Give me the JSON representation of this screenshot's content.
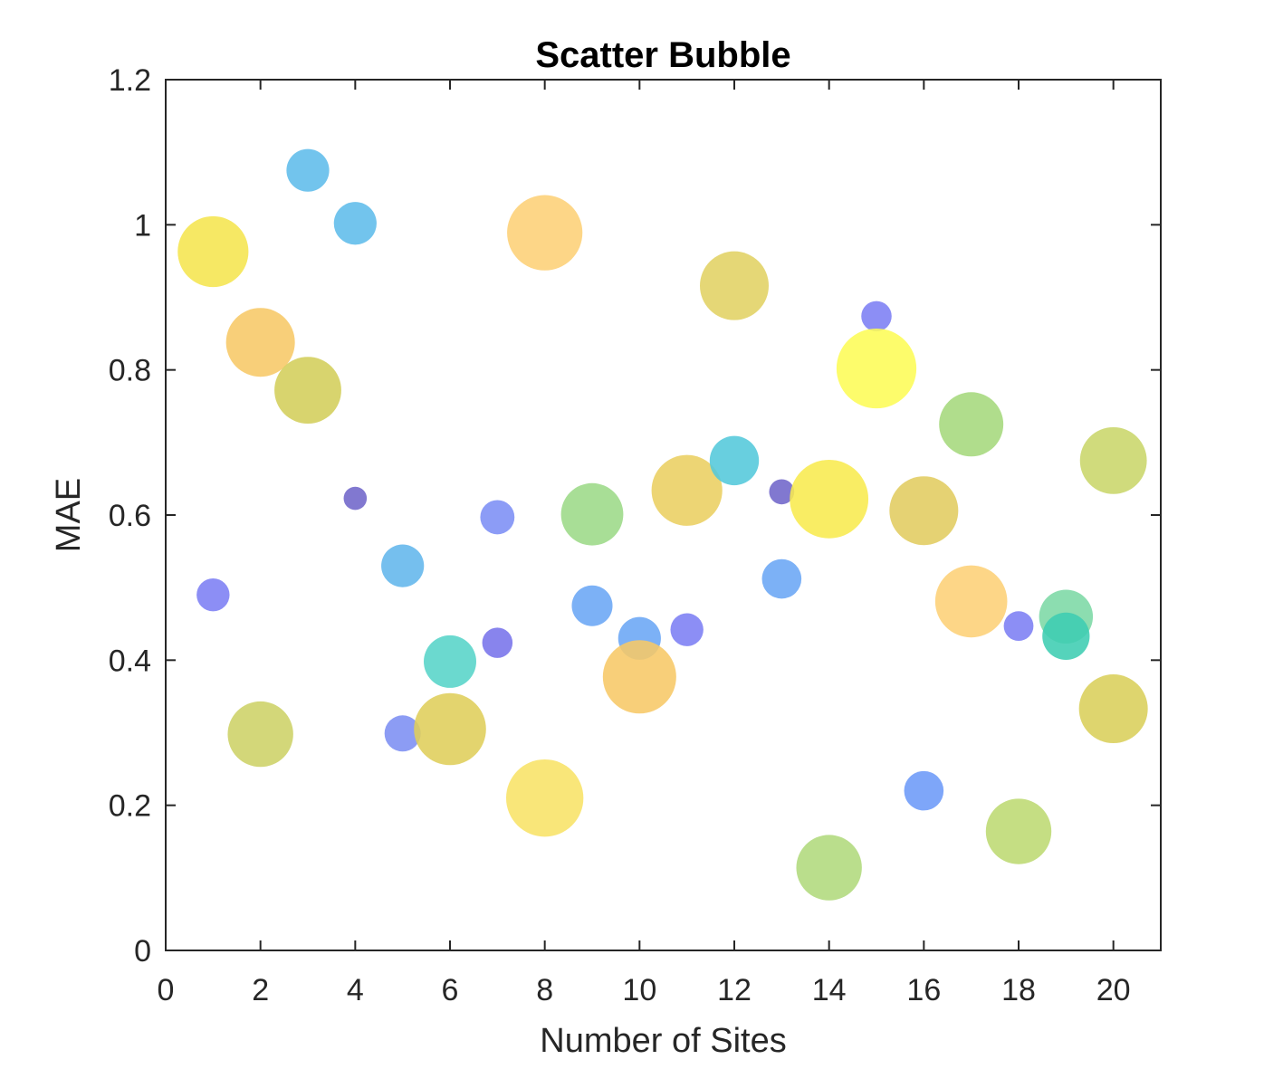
{
  "chart_data": {
    "type": "scatter",
    "title": "Scatter Bubble",
    "xlabel": "Number of Sites",
    "ylabel": "MAE",
    "xlim": [
      0,
      21
    ],
    "ylim": [
      0,
      1.2
    ],
    "xticks": [
      0,
      2,
      4,
      6,
      8,
      10,
      12,
      14,
      16,
      18,
      20
    ],
    "yticks": [
      0,
      0.2,
      0.4,
      0.6,
      0.8,
      1,
      1.2
    ],
    "xtick_labels": [
      "0",
      "2",
      "4",
      "6",
      "8",
      "10",
      "12",
      "14",
      "16",
      "18",
      "20"
    ],
    "ytick_labels": [
      "0",
      "0.2",
      "0.4",
      "0.6",
      "0.8",
      "1",
      "1.2"
    ],
    "grid": false,
    "box": true,
    "points": [
      {
        "x": 1,
        "y": 0.963,
        "size": 0.78,
        "color": "#F5E54F"
      },
      {
        "x": 1,
        "y": 0.49,
        "size": 0.2,
        "color": "#7C7EF4"
      },
      {
        "x": 2,
        "y": 0.838,
        "size": 0.75,
        "color": "#F7C867"
      },
      {
        "x": 2,
        "y": 0.298,
        "size": 0.7,
        "color": "#CDD266"
      },
      {
        "x": 3,
        "y": 1.075,
        "size": 0.35,
        "color": "#5FBCEB"
      },
      {
        "x": 3,
        "y": 0.772,
        "size": 0.72,
        "color": "#D3CE5A"
      },
      {
        "x": 4,
        "y": 1.002,
        "size": 0.35,
        "color": "#5FBCEB"
      },
      {
        "x": 4,
        "y": 0.623,
        "size": 0.05,
        "color": "#7065CA"
      },
      {
        "x": 5,
        "y": 0.53,
        "size": 0.35,
        "color": "#62B6EC"
      },
      {
        "x": 5,
        "y": 0.299,
        "size": 0.25,
        "color": "#7C8EF3"
      },
      {
        "x": 6,
        "y": 0.398,
        "size": 0.5,
        "color": "#57D4C8"
      },
      {
        "x": 6,
        "y": 0.305,
        "size": 0.8,
        "color": "#DFCE5A"
      },
      {
        "x": 7,
        "y": 0.597,
        "size": 0.22,
        "color": "#7C8EF5"
      },
      {
        "x": 7,
        "y": 0.424,
        "size": 0.16,
        "color": "#7773EB"
      },
      {
        "x": 8,
        "y": 0.989,
        "size": 0.85,
        "color": "#FDD076"
      },
      {
        "x": 8,
        "y": 0.21,
        "size": 0.88,
        "color": "#F8E266"
      },
      {
        "x": 9,
        "y": 0.601,
        "size": 0.65,
        "color": "#9CDA88"
      },
      {
        "x": 9,
        "y": 0.475,
        "size": 0.32,
        "color": "#6AA6F5"
      },
      {
        "x": 10,
        "y": 0.43,
        "size": 0.35,
        "color": "#6AA6F5"
      },
      {
        "x": 10,
        "y": 0.377,
        "size": 0.82,
        "color": "#F7C867"
      },
      {
        "x": 11,
        "y": 0.634,
        "size": 0.78,
        "color": "#EACF61"
      },
      {
        "x": 11,
        "y": 0.442,
        "size": 0.2,
        "color": "#7C7EF4"
      },
      {
        "x": 12,
        "y": 0.916,
        "size": 0.75,
        "color": "#E1D263"
      },
      {
        "x": 12,
        "y": 0.675,
        "size": 0.45,
        "color": "#53C8DB"
      },
      {
        "x": 13,
        "y": 0.632,
        "size": 0.08,
        "color": "#7065CA"
      },
      {
        "x": 13,
        "y": 0.512,
        "size": 0.3,
        "color": "#6AA6F5"
      },
      {
        "x": 14,
        "y": 0.622,
        "size": 0.9,
        "color": "#F8EB4F"
      },
      {
        "x": 14,
        "y": 0.114,
        "size": 0.7,
        "color": "#B0D97C"
      },
      {
        "x": 15,
        "y": 0.874,
        "size": 0.16,
        "color": "#7C7EF4"
      },
      {
        "x": 15,
        "y": 0.802,
        "size": 0.92,
        "color": "#FDFC57"
      },
      {
        "x": 16,
        "y": 0.606,
        "size": 0.75,
        "color": "#E1CC60"
      },
      {
        "x": 16,
        "y": 0.22,
        "size": 0.3,
        "color": "#6C9AF8"
      },
      {
        "x": 17,
        "y": 0.725,
        "size": 0.68,
        "color": "#A5D87C"
      },
      {
        "x": 17,
        "y": 0.481,
        "size": 0.8,
        "color": "#FDD076"
      },
      {
        "x": 18,
        "y": 0.447,
        "size": 0.15,
        "color": "#7C7EF4"
      },
      {
        "x": 18,
        "y": 0.164,
        "size": 0.7,
        "color": "#BDDA72"
      },
      {
        "x": 19,
        "y": 0.46,
        "size": 0.52,
        "color": "#7CD8A5"
      },
      {
        "x": 19,
        "y": 0.433,
        "size": 0.42,
        "color": "#3DCDB2"
      },
      {
        "x": 20,
        "y": 0.675,
        "size": 0.72,
        "color": "#C9D66A"
      },
      {
        "x": 20,
        "y": 0.333,
        "size": 0.75,
        "color": "#D9CF5A"
      }
    ]
  }
}
